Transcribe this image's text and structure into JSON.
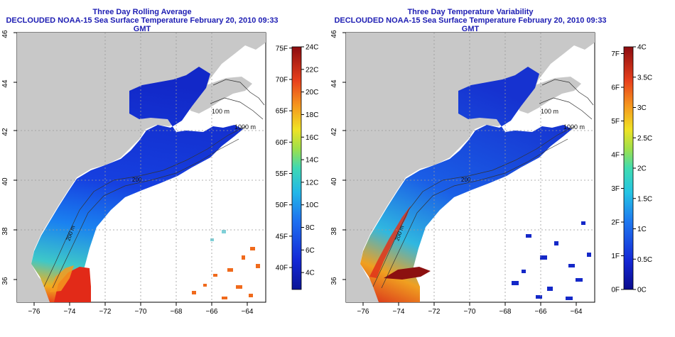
{
  "panels": [
    {
      "title": "Three Day Rolling Average",
      "subtitle": "DECLOUDED NOAA-15 Sea Surface Temperature February 20, 2010 09:33 GMT",
      "x_ticks": [
        "−76",
        "−74",
        "−72",
        "−70",
        "−68",
        "−66",
        "−64"
      ],
      "y_ticks": [
        "46",
        "44",
        "42",
        "40",
        "38",
        "36"
      ],
      "contour_labels": [
        "100 m",
        "1000 m",
        "200",
        "200 m"
      ],
      "colorbar": {
        "left_labels": [
          "75F",
          "70F",
          "65F",
          "60F",
          "55F",
          "50F",
          "45F",
          "40F"
        ],
        "right_labels": [
          "24C",
          "22C",
          "20C",
          "18C",
          "16C",
          "14C",
          "12C",
          "10C",
          "8C",
          "6C",
          "4C"
        ],
        "left_values": [
          75,
          70,
          65,
          60,
          55,
          50,
          45,
          40
        ],
        "right_values": [
          24,
          22,
          20,
          18,
          16,
          14,
          12,
          10,
          8,
          6,
          4
        ],
        "range": [
          2.5,
          24
        ]
      }
    },
    {
      "title": "Three Day Temperature Variability",
      "subtitle": "DECLOUDED NOAA-15 Sea Surface Temperature February 20, 2010 09:33 GMT",
      "x_ticks": [
        "−76",
        "−74",
        "−72",
        "−70",
        "−68",
        "−66",
        "−64"
      ],
      "y_ticks": [
        "46",
        "44",
        "42",
        "40",
        "38",
        "36"
      ],
      "contour_labels": [
        "100 m",
        "1000 m",
        "200",
        "200 m"
      ],
      "colorbar": {
        "left_labels": [
          "7F",
          "6F",
          "5F",
          "4F",
          "3F",
          "2F",
          "1F",
          "0F"
        ],
        "right_labels": [
          "4C",
          "3.5C",
          "3C",
          "2.5C",
          "2C",
          "1.5C",
          "1C",
          "0.5C",
          "0C"
        ],
        "left_values": [
          7,
          6,
          5,
          4,
          3,
          2,
          1,
          0
        ],
        "right_values": [
          4,
          3.5,
          3,
          2.5,
          2,
          1.5,
          1,
          0.5,
          0
        ],
        "range": [
          0,
          4
        ]
      }
    }
  ],
  "colors": {
    "land": "#c8c8c8",
    "title": "#1d1db3",
    "grid": "#999999"
  }
}
